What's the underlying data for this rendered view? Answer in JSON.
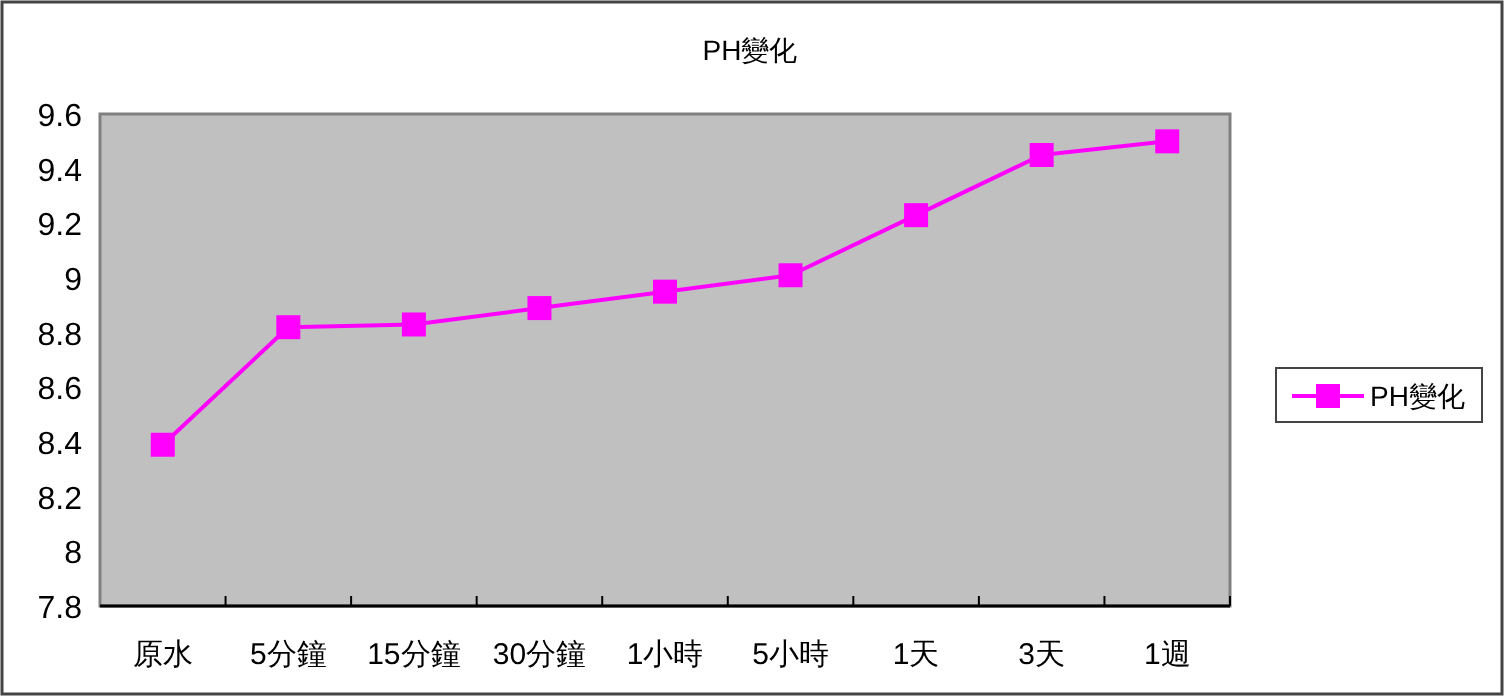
{
  "chart_data": {
    "type": "line",
    "title": "PH變化",
    "categories": [
      "原水",
      "5分鐘",
      "15分鐘",
      "30分鐘",
      "1小時",
      "5小時",
      "1天",
      "3天",
      "1週"
    ],
    "series": [
      {
        "name": "PH變化",
        "color": "#ff00ff",
        "values": [
          8.39,
          8.82,
          8.83,
          8.89,
          8.95,
          9.01,
          9.23,
          9.45,
          9.5
        ]
      }
    ],
    "ylim": [
      7.8,
      9.6
    ],
    "yticks": [
      7.8,
      8,
      8.2,
      8.4,
      8.6,
      8.8,
      9,
      9.2,
      9.4,
      9.6
    ],
    "marker": "square",
    "line_style": "solid",
    "grid": false,
    "legend": "right"
  }
}
